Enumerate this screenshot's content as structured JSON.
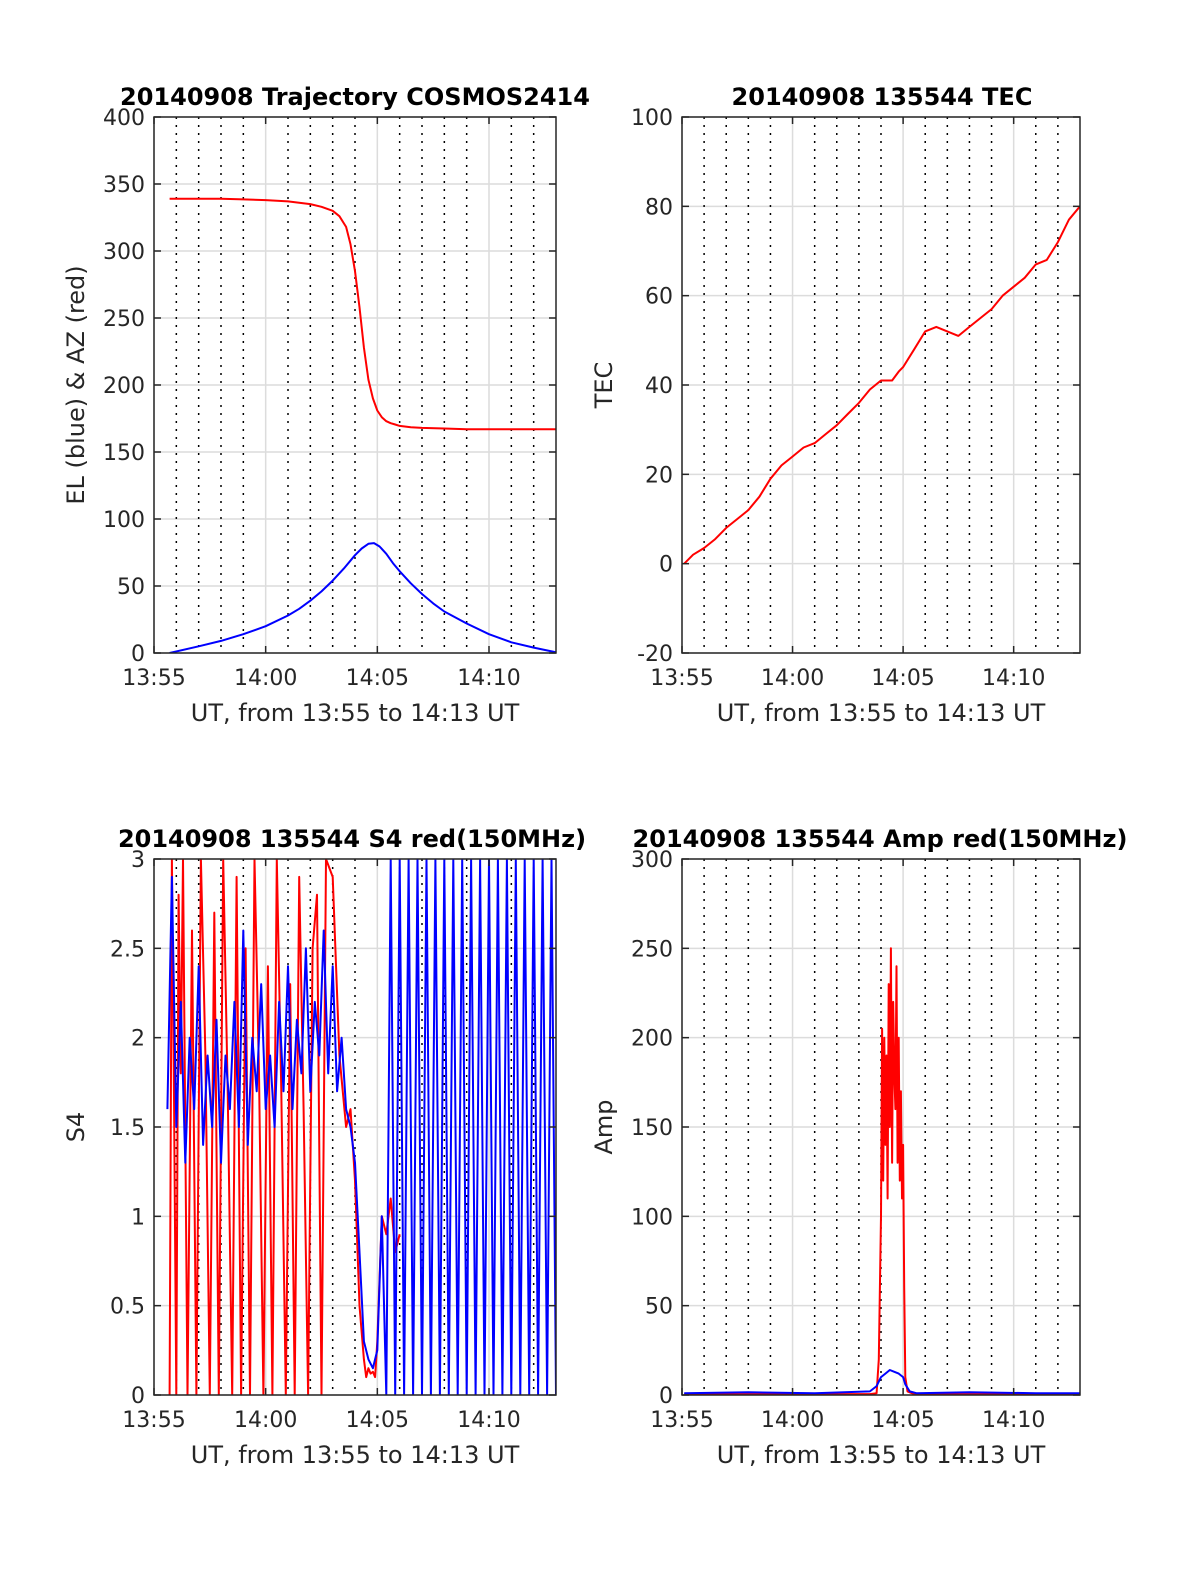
{
  "colors": {
    "red": "#ff0000",
    "blue": "#0000ff",
    "axis": "#262626",
    "grid": "#dcdcdc"
  },
  "chart_data": [
    {
      "id": "traj",
      "type": "line",
      "title": "20140908 Trajectory COSMOS2414",
      "xlabel": "UT, from 13:55 to 14:13 UT",
      "ylabel": "EL (blue) & AZ (red)",
      "xlim": [
        0,
        18
      ],
      "ylim": [
        0,
        400
      ],
      "xticks": [
        {
          "value": 0,
          "label": "13:55"
        },
        {
          "value": 5,
          "label": "14:00"
        },
        {
          "value": 10,
          "label": "14:05"
        },
        {
          "value": 15,
          "label": "14:10"
        }
      ],
      "yticks": [
        {
          "value": 0,
          "label": "0"
        },
        {
          "value": 50,
          "label": "50"
        },
        {
          "value": 100,
          "label": "100"
        },
        {
          "value": 150,
          "label": "150"
        },
        {
          "value": 200,
          "label": "200"
        },
        {
          "value": 250,
          "label": "250"
        },
        {
          "value": 300,
          "label": "300"
        },
        {
          "value": 350,
          "label": "350"
        },
        {
          "value": 400,
          "label": "400"
        }
      ],
      "series": [
        {
          "color": "red",
          "x": [
            0.7,
            2,
            3,
            4,
            5,
            6,
            7,
            7.5,
            8,
            8.3,
            8.6,
            8.8,
            9,
            9.2,
            9.4,
            9.6,
            9.8,
            10,
            10.2,
            10.4,
            10.6,
            10.8,
            11,
            11.5,
            12,
            13,
            14,
            15,
            16,
            17,
            18
          ],
          "y": [
            339,
            339,
            339,
            338.5,
            338,
            337,
            335,
            333,
            330,
            326,
            318,
            305,
            285,
            258,
            228,
            204,
            190,
            181,
            176,
            173,
            171.5,
            170.5,
            169.5,
            168.5,
            168,
            167.5,
            167,
            167,
            167,
            167,
            167
          ]
        },
        {
          "color": "blue",
          "x": [
            0.7,
            2,
            3,
            4,
            5,
            6,
            6.5,
            7,
            7.5,
            8,
            8.5,
            9,
            9.3,
            9.6,
            9.85,
            10.1,
            10.4,
            10.7,
            11,
            11.5,
            12,
            12.5,
            13,
            14,
            15,
            16,
            17,
            18
          ],
          "y": [
            0,
            5,
            9,
            14,
            20,
            28,
            33,
            39,
            46,
            54,
            63,
            73,
            78,
            81.5,
            82,
            79.5,
            74,
            67,
            61,
            52,
            44,
            37,
            31,
            22,
            14,
            8,
            4,
            0.5
          ]
        }
      ]
    },
    {
      "id": "tec",
      "type": "line",
      "title": "20140908 135544 TEC",
      "xlabel": "UT, from 13:55 to 14:13 UT",
      "ylabel": "TEC",
      "xlim": [
        0,
        18
      ],
      "ylim": [
        -20,
        100
      ],
      "xticks": [
        {
          "value": 0,
          "label": "13:55"
        },
        {
          "value": 5,
          "label": "14:00"
        },
        {
          "value": 10,
          "label": "14:05"
        },
        {
          "value": 15,
          "label": "14:10"
        }
      ],
      "yticks": [
        {
          "value": -20,
          "label": "-20"
        },
        {
          "value": 0,
          "label": "0"
        },
        {
          "value": 20,
          "label": "20"
        },
        {
          "value": 40,
          "label": "40"
        },
        {
          "value": 60,
          "label": "60"
        },
        {
          "value": 80,
          "label": "80"
        },
        {
          "value": 100,
          "label": "100"
        }
      ],
      "series": [
        {
          "color": "red",
          "x": [
            0.1,
            0.5,
            1,
            1.5,
            2,
            2.5,
            3,
            3.5,
            4,
            4.5,
            5,
            5.5,
            6,
            6.5,
            7,
            7.5,
            8,
            8.5,
            9,
            9.5,
            9.8,
            10,
            10.5,
            11,
            11.5,
            12,
            12.5,
            13,
            13.5,
            14,
            14.5,
            15,
            15.5,
            16,
            16.5,
            17,
            17.5,
            18
          ],
          "y": [
            0,
            2,
            3.5,
            5.5,
            8,
            10,
            12,
            15,
            19,
            22,
            24,
            26,
            27,
            29,
            31,
            33.5,
            36,
            39,
            41,
            41,
            43,
            44,
            48,
            52,
            53,
            52,
            51,
            53,
            55,
            57,
            60,
            62,
            64,
            67,
            68,
            72,
            77,
            80
          ]
        }
      ]
    },
    {
      "id": "s4",
      "type": "line",
      "title": "20140908 135544 S4 red(150MHz)",
      "xlabel": "UT, from 13:55 to 14:13 UT",
      "ylabel": "S4",
      "xlim": [
        0,
        18
      ],
      "ylim": [
        0,
        3
      ],
      "xticks": [
        {
          "value": 0,
          "label": "13:55"
        },
        {
          "value": 5,
          "label": "14:00"
        },
        {
          "value": 10,
          "label": "14:05"
        },
        {
          "value": 15,
          "label": "14:10"
        }
      ],
      "yticks": [
        {
          "value": 0,
          "label": "0"
        },
        {
          "value": 0.5,
          "label": "0.5"
        },
        {
          "value": 1,
          "label": "1"
        },
        {
          "value": 1.5,
          "label": "1.5"
        },
        {
          "value": 2,
          "label": "2"
        },
        {
          "value": 2.5,
          "label": "2.5"
        },
        {
          "value": 3,
          "label": "3"
        }
      ],
      "series": [
        {
          "color": "red",
          "x": [
            0.7,
            0.8,
            0.9,
            1,
            1.1,
            1.2,
            1.3,
            1.5,
            1.7,
            1.9,
            2.1,
            2.3,
            2.5,
            2.7,
            2.9,
            3.1,
            3.3,
            3.5,
            3.7,
            3.9,
            4.1,
            4.3,
            4.5,
            4.7,
            4.9,
            5.1,
            5.3,
            5.5,
            5.7,
            5.9,
            6.1,
            6.3,
            6.5,
            6.7,
            6.9,
            7.1,
            7.3,
            7.5,
            7.7,
            8.0,
            8.3,
            8.6,
            8.8,
            9.0,
            9.2,
            9.4,
            9.5,
            9.6,
            9.7,
            9.8,
            9.9,
            10.0,
            10.2,
            10.4,
            10.6,
            10.8,
            11.0
          ],
          "y": [
            0,
            3,
            1.6,
            0,
            2.8,
            1.8,
            3,
            0,
            2.6,
            0,
            3,
            1.9,
            0,
            2.7,
            0,
            3,
            1.7,
            0,
            2.9,
            0,
            2.5,
            0,
            3,
            1.8,
            0,
            2.4,
            0,
            3,
            1.7,
            0,
            2.3,
            0,
            2.9,
            1.6,
            0,
            2.5,
            2.8,
            0,
            3,
            2.9,
            1.9,
            1.5,
            1.6,
            1.2,
            0.5,
            0.2,
            0.1,
            0.15,
            0.12,
            0.13,
            0.1,
            0.3,
            1.0,
            0.9,
            1.1,
            0.8,
            0.9
          ]
        },
        {
          "color": "blue",
          "x": [
            0.6,
            0.8,
            1.0,
            1.2,
            1.4,
            1.6,
            1.8,
            2.0,
            2.2,
            2.4,
            2.6,
            2.8,
            3.0,
            3.2,
            3.4,
            3.6,
            3.8,
            4.0,
            4.2,
            4.4,
            4.6,
            4.8,
            5.0,
            5.2,
            5.4,
            5.6,
            5.8,
            6.0,
            6.2,
            6.4,
            6.6,
            6.8,
            7.0,
            7.2,
            7.4,
            7.6,
            7.8,
            8.0,
            8.2,
            8.4,
            8.6,
            8.8,
            9.0,
            9.2,
            9.4,
            9.6,
            9.8,
            10.0,
            10.2,
            10.4,
            10.6,
            10.8,
            11.0,
            11.2,
            11.4,
            11.6,
            11.8,
            12.0,
            12.2,
            12.4,
            12.6,
            12.8,
            13.0,
            13.2,
            13.4,
            13.6,
            13.8,
            14.0,
            14.2,
            14.4,
            14.6,
            14.8,
            15.0,
            15.2,
            15.4,
            15.6,
            15.8,
            16.0,
            16.2,
            16.4,
            16.6,
            16.8,
            17.0,
            17.2,
            17.4,
            17.6,
            17.8,
            18.0
          ],
          "y": [
            1.6,
            2.9,
            1.5,
            2.2,
            1.3,
            2.0,
            1.6,
            2.4,
            1.4,
            1.9,
            1.5,
            2.1,
            1.3,
            1.9,
            1.6,
            2.2,
            1.5,
            2.6,
            1.4,
            2.0,
            1.7,
            2.3,
            1.6,
            1.9,
            1.5,
            2.2,
            1.7,
            2.4,
            1.6,
            2.1,
            1.8,
            2.5,
            1.7,
            2.2,
            1.9,
            2.6,
            1.8,
            2.4,
            1.7,
            2.0,
            1.6,
            1.5,
            1.3,
            0.8,
            0.3,
            0.2,
            0.15,
            0.25,
            1.0,
            0,
            3,
            0,
            3,
            0,
            3,
            0,
            3,
            0,
            3,
            0,
            3,
            0,
            3,
            0,
            3,
            0,
            3,
            0,
            3,
            0,
            3,
            0,
            3,
            0,
            3,
            0,
            3,
            0,
            3,
            0,
            3,
            0,
            3,
            0,
            3,
            0,
            3,
            0
          ]
        }
      ]
    },
    {
      "id": "amp",
      "type": "line",
      "title": "20140908 135544 Amp red(150MHz)",
      "xlabel": "UT, from 13:55 to 14:13 UT",
      "ylabel": "Amp",
      "xlim": [
        0,
        18
      ],
      "ylim": [
        0,
        300
      ],
      "xticks": [
        {
          "value": 0,
          "label": "13:55"
        },
        {
          "value": 5,
          "label": "14:00"
        },
        {
          "value": 10,
          "label": "14:05"
        },
        {
          "value": 15,
          "label": "14:10"
        }
      ],
      "yticks": [
        {
          "value": 0,
          "label": "0"
        },
        {
          "value": 50,
          "label": "50"
        },
        {
          "value": 100,
          "label": "100"
        },
        {
          "value": 150,
          "label": "150"
        },
        {
          "value": 200,
          "label": "200"
        },
        {
          "value": 250,
          "label": "250"
        },
        {
          "value": 300,
          "label": "300"
        }
      ],
      "series": [
        {
          "color": "red",
          "x": [
            0.1,
            8.0,
            8.5,
            8.8,
            8.9,
            9.0,
            9.05,
            9.1,
            9.15,
            9.2,
            9.25,
            9.3,
            9.35,
            9.4,
            9.45,
            9.5,
            9.55,
            9.6,
            9.65,
            9.7,
            9.75,
            9.8,
            9.85,
            9.9,
            9.95,
            10.0,
            10.05,
            10.1,
            10.2,
            10.5,
            11,
            18
          ],
          "y": [
            0.5,
            0.5,
            0.5,
            1,
            20,
            100,
            205,
            120,
            200,
            140,
            190,
            110,
            230,
            150,
            250,
            130,
            220,
            180,
            160,
            240,
            130,
            200,
            120,
            170,
            110,
            140,
            60,
            10,
            2,
            0.5,
            0.5,
            0.5
          ]
        },
        {
          "color": "blue",
          "x": [
            0.1,
            3,
            6,
            8.5,
            8.8,
            9.0,
            9.2,
            9.4,
            9.6,
            9.8,
            10.0,
            10.1,
            10.3,
            10.6,
            13,
            16,
            18
          ],
          "y": [
            1,
            1.5,
            1,
            2,
            5,
            10,
            12,
            14,
            13,
            12,
            10,
            6,
            2,
            1,
            1.5,
            1,
            1
          ]
        }
      ]
    }
  ]
}
